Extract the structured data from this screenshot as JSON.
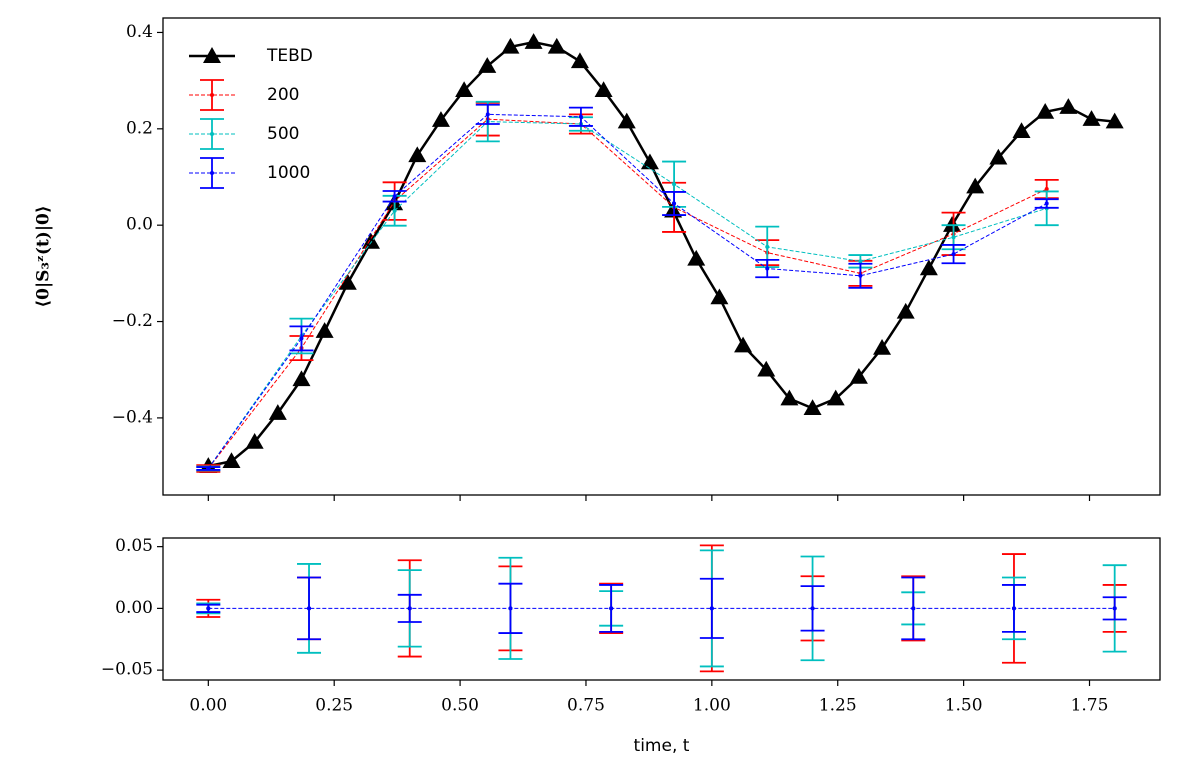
{
  "chart_data": [
    {
      "type": "errorbar",
      "ylabel": "⟨0|S₃ᶻ(t)|0⟩",
      "legend": "upper left",
      "xticklabels": false,
      "xlim": [
        -0.09,
        1.89
      ],
      "ylim": [
        -0.56,
        0.43
      ],
      "xticks": [
        0,
        0.25,
        0.5,
        0.75,
        1,
        1.25,
        1.5,
        1.75
      ],
      "yticks": [
        {
          "value": -0.4,
          "label": "−0.4"
        },
        {
          "value": -0.2,
          "label": "−0.2"
        },
        {
          "value": 0,
          "label": "0.0"
        },
        0.2,
        0.4
      ],
      "series": [
        {
          "name": "TEBD",
          "color": "#000000",
          "marker": "triangle",
          "style": "solid",
          "x": [
            0,
            0.046,
            0.092,
            0.138,
            0.185,
            0.231,
            0.277,
            0.323,
            0.369,
            0.415,
            0.462,
            0.508,
            0.554,
            0.6,
            0.646,
            0.692,
            0.738,
            0.785,
            0.831,
            0.877,
            0.923,
            0.969,
            1.015,
            1.062,
            1.108,
            1.154,
            1.2,
            1.246,
            1.292,
            1.338,
            1.385,
            1.431,
            1.477,
            1.523,
            1.569,
            1.615,
            1.662,
            1.708,
            1.754,
            1.8
          ],
          "values": [
            -0.5,
            -0.49,
            -0.45,
            -0.39,
            -0.32,
            -0.22,
            -0.12,
            -0.035,
            0.045,
            0.145,
            0.218,
            0.28,
            0.33,
            0.37,
            0.38,
            0.37,
            0.34,
            0.28,
            0.215,
            0.13,
            0.03,
            -0.07,
            -0.15,
            -0.25,
            -0.3,
            -0.36,
            -0.38,
            -0.36,
            -0.315,
            -0.255,
            -0.18,
            -0.09,
            0.0,
            0.08,
            0.14,
            0.195,
            0.235,
            0.245,
            0.22,
            0.215
          ]
        },
        {
          "name": "200",
          "color": "#ff0000",
          "style": "dashed",
          "x": [
            0,
            0.185,
            0.37,
            0.555,
            0.74,
            0.925,
            1.11,
            1.295,
            1.48,
            1.665
          ],
          "values": [
            -0.505,
            -0.255,
            0.05,
            0.22,
            0.21,
            0.037,
            -0.057,
            -0.1,
            -0.018,
            0.075
          ],
          "errors": [
            0.007,
            0.025,
            0.039,
            0.034,
            0.02,
            0.051,
            0.026,
            0.026,
            0.044,
            0.019
          ]
        },
        {
          "name": "500",
          "color": "#00bfbf",
          "style": "dashed",
          "x": [
            0,
            0.185,
            0.37,
            0.555,
            0.74,
            0.925,
            1.11,
            1.295,
            1.48,
            1.665
          ],
          "values": [
            -0.505,
            -0.23,
            0.03,
            0.215,
            0.21,
            0.085,
            -0.045,
            -0.075,
            -0.025,
            0.035
          ],
          "errors": [
            0.004,
            0.036,
            0.031,
            0.041,
            0.014,
            0.047,
            0.042,
            0.013,
            0.025,
            0.035
          ]
        },
        {
          "name": "1000",
          "color": "#0000ff",
          "style": "dashed",
          "x": [
            0,
            0.185,
            0.37,
            0.555,
            0.74,
            0.925,
            1.11,
            1.295,
            1.48,
            1.665
          ],
          "values": [
            -0.505,
            -0.235,
            0.06,
            0.23,
            0.225,
            0.045,
            -0.09,
            -0.105,
            -0.06,
            0.045
          ],
          "errors": [
            0.003,
            0.025,
            0.011,
            0.02,
            0.019,
            0.024,
            0.018,
            0.025,
            0.019,
            0.009
          ]
        }
      ]
    },
    {
      "type": "errorbar",
      "xlabel": "time, t",
      "xlim": [
        -0.09,
        1.89
      ],
      "ylim": [
        -0.058,
        0.057
      ],
      "xticks": [
        {
          "value": 0,
          "label": "0.00"
        },
        0.25,
        {
          "value": 0.5,
          "label": "0.50"
        },
        0.75,
        {
          "value": 1,
          "label": "1.00"
        },
        1.25,
        {
          "value": 1.5,
          "label": "1.50"
        },
        1.75
      ],
      "yticks": [
        {
          "value": -0.05,
          "label": "−0.05"
        },
        {
          "value": 0,
          "label": "0.00"
        },
        0.05
      ],
      "series": [
        {
          "name": "200",
          "color": "#ff0000",
          "style": "none",
          "x": [
            0,
            0.2,
            0.4,
            0.6,
            0.8,
            1.0,
            1.2,
            1.4,
            1.6,
            1.8
          ],
          "values": [
            0,
            0,
            0,
            0,
            0,
            0,
            0,
            0,
            0,
            0
          ],
          "errors": [
            0.007,
            0.025,
            0.039,
            0.034,
            0.02,
            0.051,
            0.026,
            0.026,
            0.044,
            0.019
          ]
        },
        {
          "name": "500",
          "color": "#00bfbf",
          "style": "none",
          "x": [
            0,
            0.2,
            0.4,
            0.6,
            0.8,
            1.0,
            1.2,
            1.4,
            1.6,
            1.8
          ],
          "values": [
            0,
            0,
            0,
            0,
            0,
            0,
            0,
            0,
            0,
            0
          ],
          "errors": [
            0.004,
            0.036,
            0.031,
            0.041,
            0.014,
            0.047,
            0.042,
            0.013,
            0.025,
            0.035
          ]
        },
        {
          "name": "1000",
          "color": "#0000ff",
          "style": "dashed",
          "x": [
            0,
            0.2,
            0.4,
            0.6,
            0.8,
            1.0,
            1.2,
            1.4,
            1.6,
            1.8
          ],
          "values": [
            0,
            0,
            0,
            0,
            0,
            0,
            0,
            0,
            0,
            0
          ],
          "errors": [
            0.003,
            0.025,
            0.011,
            0.02,
            0.019,
            0.024,
            0.018,
            0.025,
            0.019,
            0.009
          ]
        }
      ]
    }
  ]
}
